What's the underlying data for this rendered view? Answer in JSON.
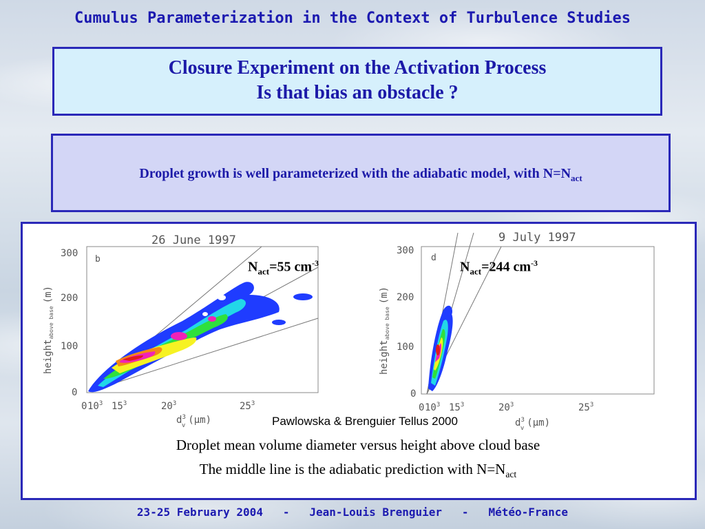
{
  "header": {
    "title": "Cumulus Parameterization in the Context of Turbulence Studies"
  },
  "title_box": {
    "line1": "Closure Experiment on the Activation Process",
    "line2": "Is that bias an obstacle ?"
  },
  "claim_box": {
    "text": "Droplet growth is well parameterized with the adiabatic model, with N=N",
    "sub": "act"
  },
  "figure": {
    "left_plot": {
      "date": "26 June 1997",
      "panel": "b",
      "n_label_base": "N",
      "n_label_sub": "act",
      "n_label_value": "=55 cm",
      "n_label_sup": "-3",
      "y_ticks": [
        "300",
        "200",
        "100",
        "0"
      ],
      "x_ticks": [
        "0",
        "10",
        "15",
        "20",
        "25"
      ],
      "x_tick_exp": "3",
      "ylabel_main": "height",
      "ylabel_sub": "above base",
      "ylabel_unit": "(m)",
      "xlabel_main": "d",
      "xlabel_sup": "3",
      "xlabel_sub": "v",
      "xlabel_unit": "(μm)"
    },
    "right_plot": {
      "date": "9 July 1997",
      "panel": "d",
      "n_label_base": "N",
      "n_label_sub": "act",
      "n_label_value": "=244 cm",
      "n_label_sup": "-3",
      "y_ticks": [
        "300",
        "200",
        "100",
        "0"
      ],
      "x_ticks": [
        "0",
        "10",
        "15",
        "20",
        "25"
      ],
      "x_tick_exp": "3",
      "ylabel_main": "height",
      "ylabel_sub": "above base",
      "ylabel_unit": "(m)",
      "xlabel_main": "d",
      "xlabel_sup": "3",
      "xlabel_sub": "v",
      "xlabel_unit": "(μm)"
    },
    "citation": "Pawlowska & Brenguier Tellus 2000",
    "caption_line1": "Droplet mean volume diameter versus height above cloud base",
    "caption_line2": "The middle line is the adiabatic prediction with  N=N",
    "caption_line2_sub": "act"
  },
  "colors": {
    "title_blue": "#1c1ab0",
    "border_blue": "#2a28b8",
    "light_blue": "#d6f0fc",
    "lavender": "#d3d6f6"
  },
  "footer": {
    "text": "23-25 February 2004   -   Jean-Louis Brenguier   -   Météo-France"
  }
}
